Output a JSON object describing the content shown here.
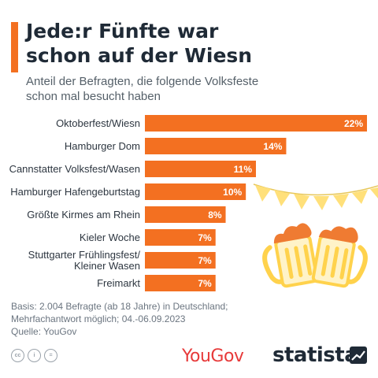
{
  "title_lines": [
    "Jede:r Fünfte war",
    "schon auf der Wiesn"
  ],
  "subtitle_lines": [
    "Anteil der Befragten, die folgende Volksfeste",
    "schon mal besucht haben"
  ],
  "chart_data": {
    "type": "bar",
    "orientation": "horizontal",
    "categories": [
      [
        "Oktoberfest/Wiesn"
      ],
      [
        "Hamburger Dom"
      ],
      [
        "Cannstatter Volksfest/Wasen"
      ],
      [
        "Hamburger Hafengeburtstag"
      ],
      [
        "Größte Kirmes am Rhein"
      ],
      [
        "Kieler Woche"
      ],
      [
        "Stuttgarter Frühlingsfest/",
        "Kleiner Wasen"
      ],
      [
        "Freimarkt"
      ]
    ],
    "values": [
      22,
      14,
      11,
      10,
      8,
      7,
      7,
      7
    ],
    "data_labels": [
      "22%",
      "14%",
      "11%",
      "10%",
      "8%",
      "7%",
      "7%",
      "7%"
    ],
    "xlim": [
      0,
      22
    ],
    "unit": "%",
    "grid": false,
    "bar_color": "#f37021"
  },
  "footnote_lines": [
    "Basis: 2.004 Befragte (ab 18 Jahre) in Deutschland;",
    "Mehrfachantwort möglich; 04.-06.09.2023",
    "Quelle: YouGov"
  ],
  "license_icons": [
    "cc",
    "i",
    "="
  ],
  "logos": {
    "yougov": "YouGov",
    "statista": "statista"
  },
  "colors": {
    "accent": "#f37021",
    "title": "#1f2a36",
    "bunting": "#ffe07a",
    "beer": "#ffd24c",
    "foam": "#ef7b32"
  }
}
